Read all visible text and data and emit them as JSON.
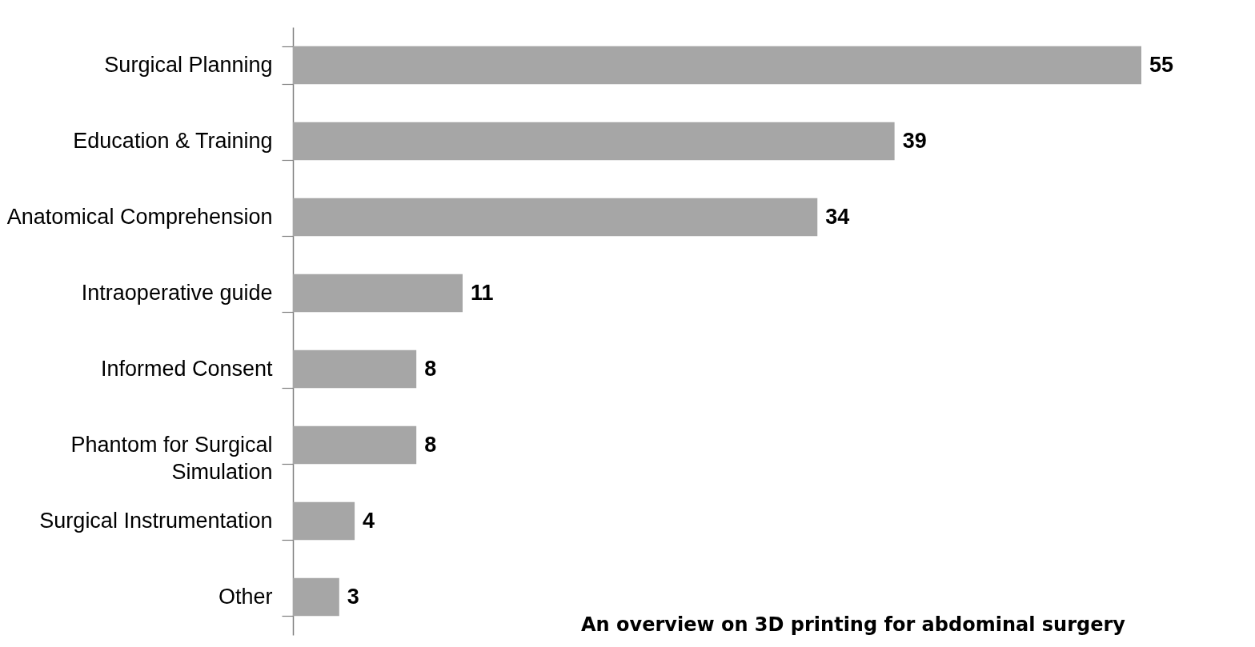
{
  "chart_data": {
    "type": "bar",
    "orientation": "horizontal",
    "categories": [
      "Surgical Planning",
      "Education & Training",
      "Anatomical Comprehension",
      "Intraoperative guide",
      "Informed Consent",
      "Phantom for Surgical Simulation",
      "Surgical Instrumentation",
      "Other"
    ],
    "values": [
      55,
      39,
      34,
      11,
      8,
      8,
      4,
      3
    ],
    "color": "#a6a6a6",
    "data_labels": true,
    "grid": false,
    "tick_labels": "y",
    "annotations": [
      "An overview on 3D printing for abdominal surgery"
    ]
  }
}
